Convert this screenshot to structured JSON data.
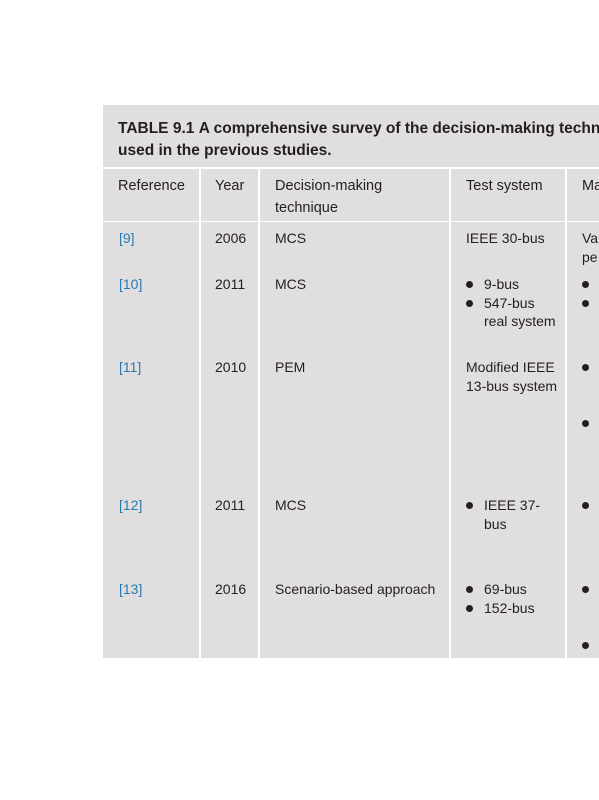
{
  "table": {
    "label": "TABLE 9.1",
    "title": "A comprehensive survey of the decision-making techniques used in the previous studies.",
    "headers": {
      "reference": "Reference",
      "year": "Year",
      "technique": "Decision-making technique",
      "test_system": "Test system",
      "fifth": "Ma"
    },
    "rows": [
      {
        "ref": "[9]",
        "year": "2006",
        "technique": "MCS",
        "test_system_text": "IEEE 30-bus",
        "test_system_bullets": [],
        "fifth_lines": [
          "Va",
          "pe"
        ],
        "fifth_bullets": 0
      },
      {
        "ref": "[10]",
        "year": "2011",
        "technique": "MCS",
        "test_system_text": "",
        "test_system_bullets": [
          "9-bus",
          "547-bus real system"
        ],
        "fifth_lines": [],
        "fifth_bullets": 2
      },
      {
        "ref": "[11]",
        "year": "2010",
        "technique": "PEM",
        "test_system_text": "Modified IEEE 13-bus system",
        "test_system_bullets": [],
        "fifth_lines": [],
        "fifth_bullets": 2
      },
      {
        "ref": "[12]",
        "year": "2011",
        "technique": "MCS",
        "test_system_text": "",
        "test_system_bullets": [
          "IEEE 37-bus"
        ],
        "fifth_lines": [],
        "fifth_bullets": 1
      },
      {
        "ref": "[13]",
        "year": "2016",
        "technique": "Scenario-based approach",
        "test_system_text": "",
        "test_system_bullets": [
          "69-bus",
          "152-bus"
        ],
        "fifth_lines": [],
        "fifth_bullets": 2
      }
    ]
  }
}
